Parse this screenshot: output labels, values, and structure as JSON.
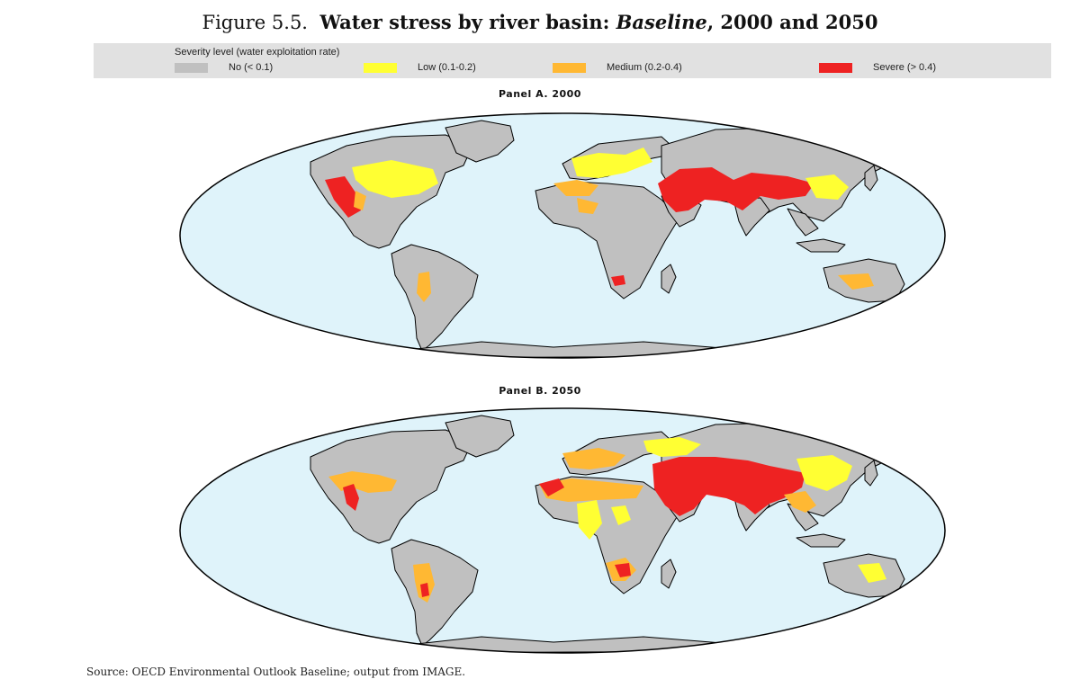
{
  "figure": {
    "prefix": "Figure 5.5.",
    "title_main": "Water stress by river basin: ",
    "title_italic": "Baseline",
    "title_rest": ", 2000 and 2050"
  },
  "legend": {
    "title": "Severity level (water exploitation rate)",
    "items": [
      {
        "label": "No (< 0.1)",
        "color": "#c0c0c0"
      },
      {
        "label": "Low (0.1-0.2)",
        "color": "#ffff33"
      },
      {
        "label": "Medium (0.2-0.4)",
        "color": "#ffb833"
      },
      {
        "label": "Severe (> 0.4)",
        "color": "#ee2222"
      }
    ]
  },
  "colors": {
    "ocean": "#dff3fa",
    "land": "#c0c0c0",
    "border": "#000000"
  },
  "panels": [
    {
      "title": "Panel A. 2000"
    },
    {
      "title": "Panel B. 2050"
    }
  ],
  "source": "Source:  OECD Environmental Outlook Baseline; output from IMAGE."
}
